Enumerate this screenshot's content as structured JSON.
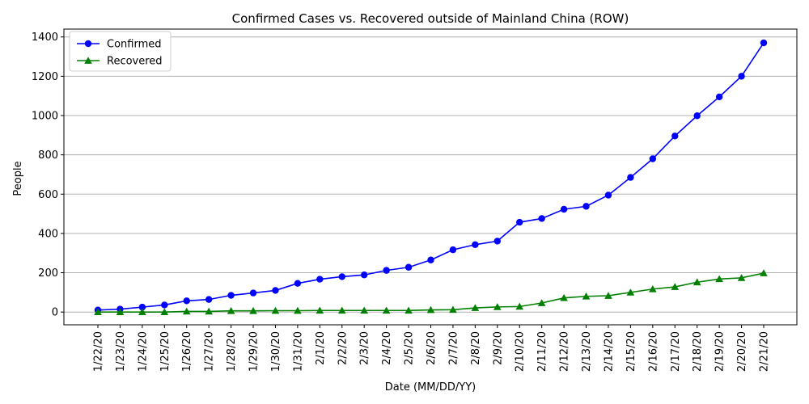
{
  "chart_data": {
    "type": "line",
    "title": "Confirmed Cases vs. Recovered outside of Mainland China (ROW)",
    "xlabel": "Date (MM/DD/YY)",
    "ylabel": "People",
    "ylim": [
      -65,
      1440
    ],
    "yticks": [
      0,
      200,
      400,
      600,
      800,
      1000,
      1200,
      1400
    ],
    "grid": "horizontal",
    "legend_position": "top-left",
    "categories": [
      "1/22/20",
      "1/23/20",
      "1/24/20",
      "1/25/20",
      "1/26/20",
      "1/27/20",
      "1/28/20",
      "1/29/20",
      "1/30/20",
      "1/31/20",
      "2/1/20",
      "2/2/20",
      "2/3/20",
      "2/4/20",
      "2/5/20",
      "2/6/20",
      "2/7/20",
      "2/8/20",
      "2/9/20",
      "2/10/20",
      "2/11/20",
      "2/12/20",
      "2/13/20",
      "2/14/20",
      "2/15/20",
      "2/16/20",
      "2/17/20",
      "2/18/20",
      "2/19/20",
      "2/20/20",
      "2/21/20"
    ],
    "series": [
      {
        "name": "Confirmed",
        "color": "#0000ff",
        "marker": "circle",
        "values": [
          10,
          15,
          25,
          36,
          57,
          64,
          85,
          97,
          110,
          146,
          167,
          180,
          189,
          212,
          228,
          265,
          317,
          343,
          361,
          457,
          476,
          523,
          538,
          595,
          685,
          780,
          896,
          999,
          1095,
          1200,
          1370
        ]
      },
      {
        "name": "Recovered",
        "color": "#008000",
        "marker": "triangle",
        "values": [
          0,
          0,
          0,
          0,
          3,
          3,
          6,
          6,
          7,
          7,
          8,
          8,
          8,
          8,
          8,
          11,
          12,
          21,
          26,
          28,
          46,
          72,
          80,
          83,
          100,
          117,
          128,
          152,
          168,
          174,
          198
        ]
      }
    ]
  }
}
